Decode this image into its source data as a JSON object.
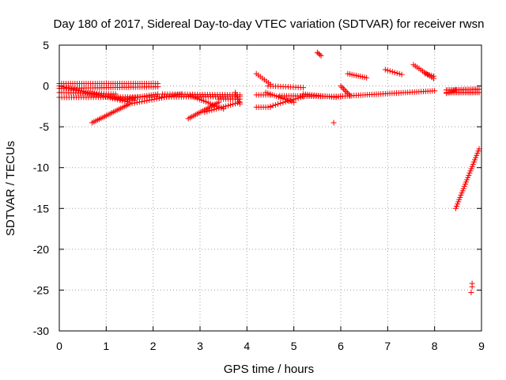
{
  "chart_data": {
    "type": "scatter",
    "title": "Day 180 of 2017, Sidereal Day-to-day VTEC variation (SDTVAR) for receiver rwsn",
    "xlabel": "GPS time / hours",
    "ylabel": "SDTVAR / TECUs",
    "xlim": [
      0,
      9
    ],
    "ylim": [
      -30,
      5
    ],
    "xticks": [
      "0",
      "1",
      "2",
      "3",
      "4",
      "5",
      "6",
      "7",
      "8",
      "9"
    ],
    "yticks": [
      "5",
      "0",
      "-5",
      "-10",
      "-15",
      "-20",
      "-25",
      "-30"
    ],
    "grid": true,
    "marker": "+",
    "series_color": "#ff0000",
    "segments": [
      {
        "x0": 0.0,
        "x1": 2.1,
        "y0": 0.3,
        "y1": 0.3,
        "n": 45
      },
      {
        "x0": 0.0,
        "x1": 2.1,
        "y0": -0.3,
        "y1": -0.1,
        "n": 45
      },
      {
        "x0": 0.0,
        "x1": 1.2,
        "y0": -0.8,
        "y1": -1.0,
        "n": 25
      },
      {
        "x0": 0.0,
        "x1": 3.85,
        "y0": -1.4,
        "y1": -1.3,
        "n": 75
      },
      {
        "x0": 0.0,
        "x1": 1.5,
        "y0": 0.0,
        "y1": -2.0,
        "n": 30
      },
      {
        "x0": 0.6,
        "x1": 1.6,
        "y0": -0.9,
        "y1": -1.8,
        "n": 22
      },
      {
        "x0": 0.7,
        "x1": 1.5,
        "y0": -4.5,
        "y1": -2.2,
        "n": 22
      },
      {
        "x0": 1.5,
        "x1": 2.6,
        "y0": -2.2,
        "y1": -1.0,
        "n": 22
      },
      {
        "x0": 1.3,
        "x1": 2.1,
        "y0": -1.7,
        "y1": -1.0,
        "n": 18
      },
      {
        "x0": 2.2,
        "x1": 3.85,
        "y0": -1.0,
        "y1": -1.1,
        "n": 32
      },
      {
        "x0": 2.75,
        "x1": 3.4,
        "y0": -4.0,
        "y1": -2.0,
        "n": 18
      },
      {
        "x0": 2.8,
        "x1": 3.5,
        "y0": -1.2,
        "y1": -2.8,
        "n": 16
      },
      {
        "x0": 3.1,
        "x1": 3.85,
        "y0": -3.2,
        "y1": -2.0,
        "n": 16
      },
      {
        "x0": 3.4,
        "x1": 3.85,
        "y0": -1.6,
        "y1": -1.6,
        "n": 10
      },
      {
        "x0": 3.75,
        "x1": 3.85,
        "y0": -0.8,
        "y1": -2.2,
        "n": 6
      },
      {
        "x0": 4.2,
        "x1": 4.5,
        "y0": 1.5,
        "y1": 0.2,
        "n": 8
      },
      {
        "x0": 4.45,
        "x1": 5.2,
        "y0": 0.0,
        "y1": -0.2,
        "n": 15
      },
      {
        "x0": 4.2,
        "x1": 4.5,
        "y0": -1.1,
        "y1": -1.1,
        "n": 7
      },
      {
        "x0": 4.2,
        "x1": 4.5,
        "y0": -2.6,
        "y1": -2.6,
        "n": 7
      },
      {
        "x0": 4.4,
        "x1": 5.0,
        "y0": -0.8,
        "y1": -2.0,
        "n": 14
      },
      {
        "x0": 4.5,
        "x1": 5.2,
        "y0": -2.5,
        "y1": -1.3,
        "n": 14
      },
      {
        "x0": 4.7,
        "x1": 6.0,
        "y0": -1.2,
        "y1": -1.3,
        "n": 28
      },
      {
        "x0": 5.2,
        "x1": 5.9,
        "y0": -1.0,
        "y1": -1.4,
        "n": 16
      },
      {
        "x0": 5.9,
        "x1": 8.0,
        "y0": -1.3,
        "y1": -0.6,
        "n": 45
      },
      {
        "x0": 5.5,
        "x1": 5.58,
        "y0": 4.1,
        "y1": 3.7,
        "n": 4
      },
      {
        "x0": 6.0,
        "x1": 6.2,
        "y0": 0.0,
        "y1": -1.2,
        "n": 8
      },
      {
        "x0": 6.15,
        "x1": 6.55,
        "y0": 1.5,
        "y1": 1.0,
        "n": 10
      },
      {
        "x0": 6.95,
        "x1": 7.3,
        "y0": 2.0,
        "y1": 1.4,
        "n": 8
      },
      {
        "x0": 7.55,
        "x1": 7.98,
        "y0": 2.6,
        "y1": 0.9,
        "n": 12
      },
      {
        "x0": 7.8,
        "x1": 7.98,
        "y0": 1.5,
        "y1": 1.2,
        "n": 5
      },
      {
        "x0": 8.25,
        "x1": 8.95,
        "y0": -0.5,
        "y1": -0.4,
        "n": 20
      },
      {
        "x0": 8.25,
        "x1": 8.95,
        "y0": -0.8,
        "y1": -0.8,
        "n": 20
      },
      {
        "x0": 8.25,
        "x1": 8.45,
        "y0": -0.9,
        "y1": -0.5,
        "n": 6
      },
      {
        "x0": 8.45,
        "x1": 8.95,
        "y0": -15.0,
        "y1": -7.7,
        "n": 28
      }
    ],
    "isolated_points": [
      {
        "x": 5.85,
        "y": -4.5
      },
      {
        "x": 8.8,
        "y": -24.2
      },
      {
        "x": 8.8,
        "y": -24.6
      },
      {
        "x": 8.78,
        "y": -25.3
      }
    ]
  }
}
